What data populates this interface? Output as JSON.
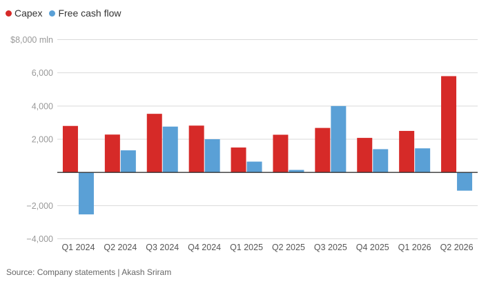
{
  "chart_data": {
    "type": "bar",
    "categories": [
      "Q1 2024",
      "Q2 2024",
      "Q3 2024",
      "Q4 2024",
      "Q1 2025",
      "Q2 2025",
      "Q3 2025",
      "Q4 2025",
      "Q1 2026",
      "Q2 2026"
    ],
    "series": [
      {
        "name": "Capex",
        "color": "#d62a28",
        "values": [
          2800,
          2280,
          3530,
          2820,
          1500,
          2270,
          2680,
          2080,
          2500,
          5800
        ]
      },
      {
        "name": "Free cash flow",
        "color": "#5aa0d6",
        "values": [
          -2530,
          1330,
          2760,
          2000,
          650,
          150,
          4000,
          1400,
          1450,
          -1100
        ]
      }
    ],
    "y_ticks": [
      {
        "value": 8000,
        "label": "$8,000 mln"
      },
      {
        "value": 6000,
        "label": "6,000"
      },
      {
        "value": 4000,
        "label": "4,000"
      },
      {
        "value": 2000,
        "label": "2,000"
      },
      {
        "value": 0,
        "label": ""
      },
      {
        "value": -2000,
        "label": "−2,000"
      },
      {
        "value": -4000,
        "label": "−4,000"
      }
    ],
    "ylim": [
      -4000,
      8000
    ],
    "grid": true,
    "legend": "top-left",
    "source": "Source: Company statements | Akash Sriram"
  }
}
